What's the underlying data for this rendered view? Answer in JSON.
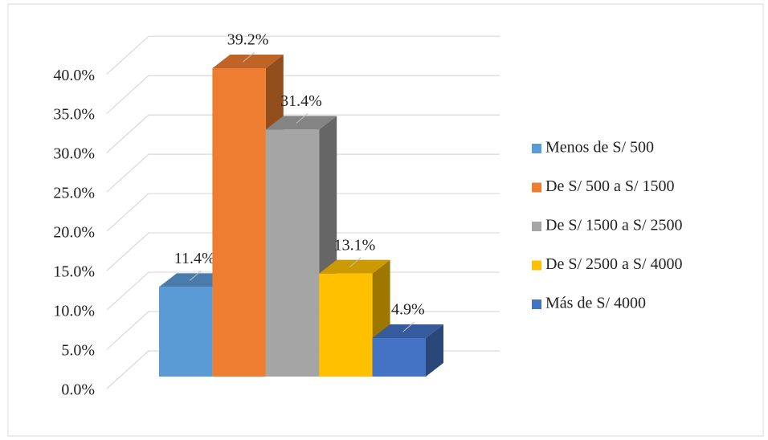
{
  "chart_data": {
    "type": "bar",
    "series": [
      {
        "name": "Menos de S/ 500",
        "color": "#5b9bd5",
        "values": [
          11.4
        ],
        "value_labels": [
          "11.4%"
        ]
      },
      {
        "name": "De S/ 500 a S/ 1500",
        "color": "#ed7d31",
        "values": [
          39.2
        ],
        "value_labels": [
          "39.2%"
        ]
      },
      {
        "name": "De S/ 1500 a S/ 2500",
        "color": "#a5a5a5",
        "values": [
          31.4
        ],
        "value_labels": [
          "31.4%"
        ]
      },
      {
        "name": "De S/ 2500 a S/ 4000",
        "color": "#ffc000",
        "values": [
          13.1
        ],
        "value_labels": [
          "13.1%"
        ]
      },
      {
        "name": "Más de S/ 4000",
        "color": "#4472c4",
        "values": [
          4.9
        ],
        "value_labels": [
          "4.9%"
        ]
      }
    ],
    "ylim": [
      0,
      40
    ],
    "yticks": [
      {
        "value": 0,
        "label": "0.0%"
      },
      {
        "value": 5,
        "label": "5.0%"
      },
      {
        "value": 10,
        "label": "10.0%"
      },
      {
        "value": 15,
        "label": "15.0%"
      },
      {
        "value": 20,
        "label": "20.0%"
      },
      {
        "value": 25,
        "label": "25.0%"
      },
      {
        "value": 30,
        "label": "30.0%"
      },
      {
        "value": 35,
        "label": "35.0%"
      },
      {
        "value": 40,
        "label": "40.0%"
      }
    ],
    "grid": true,
    "legend": "right"
  }
}
